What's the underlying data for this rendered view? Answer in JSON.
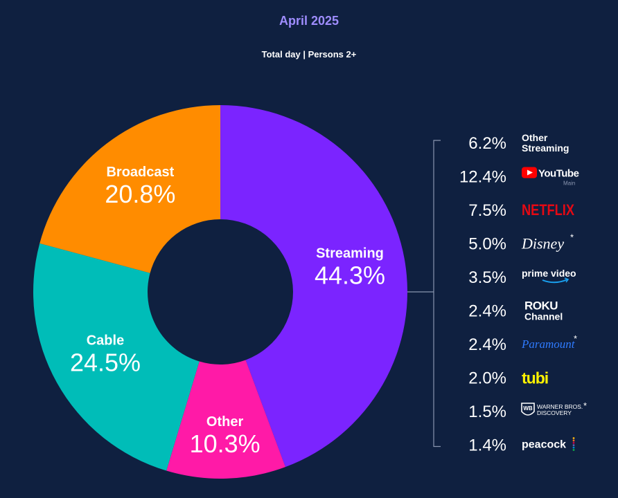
{
  "header": {
    "title": "April 2025",
    "subtitle": "Total day | Persons 2+"
  },
  "colors": {
    "background": "#0f2040",
    "title": "#9f8dff",
    "streaming": "#7b24ff",
    "other": "#ff1aa7",
    "cable": "#00bdb8",
    "broadcast": "#ff8c00",
    "bracket": "#8a96b0"
  },
  "chart_data": {
    "type": "donut",
    "title": "April 2025",
    "subtitle": "Total day | Persons 2+",
    "segments": [
      {
        "name": "Streaming",
        "value": 44.3,
        "label": "44.3%",
        "color": "#7b24ff"
      },
      {
        "name": "Other",
        "value": 10.3,
        "label": "10.3%",
        "color": "#ff1aa7"
      },
      {
        "name": "Cable",
        "value": 24.5,
        "label": "24.5%",
        "color": "#00bdb8"
      },
      {
        "name": "Broadcast",
        "value": 20.8,
        "label": "20.8%",
        "color": "#ff8c00"
      }
    ],
    "breakdown": {
      "parent": "Streaming",
      "items": [
        {
          "value": 6.2,
          "label": "6.2%",
          "name": "Other Streaming",
          "lines": [
            "Other",
            "Streaming"
          ],
          "icon": "other-streaming-label"
        },
        {
          "value": 12.4,
          "label": "12.4%",
          "name": "YouTube",
          "sub": "Main",
          "icon": "youtube-logo",
          "color": "#ff0000"
        },
        {
          "value": 7.5,
          "label": "7.5%",
          "name": "NETFLIX",
          "icon": "netflix-logo",
          "color": "#e50914"
        },
        {
          "value": 5.0,
          "label": "5.0%",
          "name": "Disney",
          "asterisk": true,
          "icon": "disney-logo"
        },
        {
          "value": 3.5,
          "label": "3.5%",
          "name": "prime video",
          "icon": "prime-video-logo",
          "color": "#1aa1f0"
        },
        {
          "value": 2.4,
          "label": "2.4%",
          "name": "Roku Channel",
          "lines": [
            "ROKU",
            "Channel"
          ],
          "icon": "roku-channel-logo"
        },
        {
          "value": 2.4,
          "label": "2.4%",
          "name": "Paramount",
          "asterisk": true,
          "icon": "paramount-logo",
          "color": "#2f7bff"
        },
        {
          "value": 2.0,
          "label": "2.0%",
          "name": "tubi",
          "icon": "tubi-logo",
          "color": "#fff200"
        },
        {
          "value": 1.5,
          "label": "1.5%",
          "name": "Warner Bros. Discovery",
          "lines": [
            "WARNER BROS.",
            "DISCOVERY"
          ],
          "asterisk": true,
          "icon": "wbd-logo"
        },
        {
          "value": 1.4,
          "label": "1.4%",
          "name": "peacock",
          "icon": "peacock-logo"
        }
      ]
    }
  }
}
